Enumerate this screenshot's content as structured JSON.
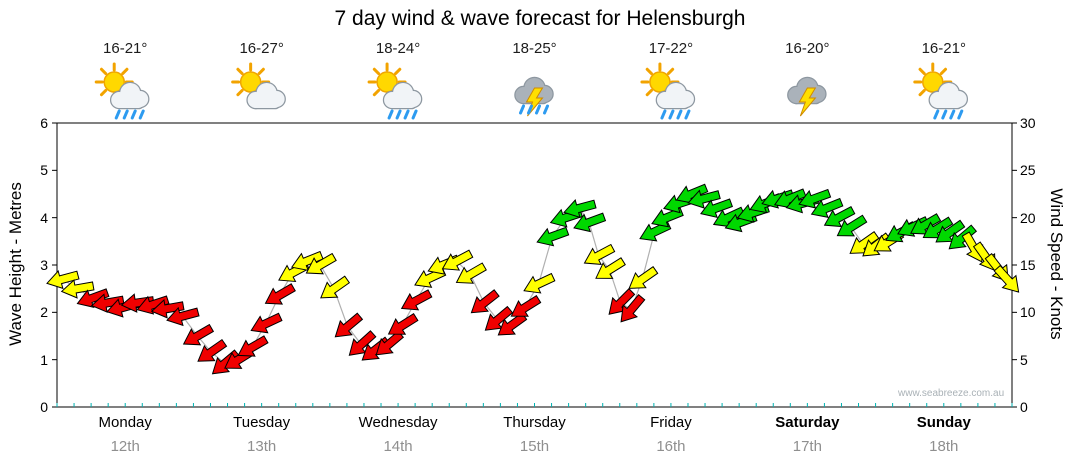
{
  "title": "7 day wind & wave forecast for Helensburgh",
  "watermark": "www.seabreeze.com.au",
  "temperatures": [
    "16-21°",
    "16-27°",
    "18-24°",
    "18-25°",
    "17-22°",
    "16-20°",
    "16-21°"
  ],
  "days": [
    {
      "name": "Monday",
      "date": "12th",
      "bold": false
    },
    {
      "name": "Tuesday",
      "date": "13th",
      "bold": false
    },
    {
      "name": "Wednesday",
      "date": "14th",
      "bold": false
    },
    {
      "name": "Thursday",
      "date": "15th",
      "bold": false
    },
    {
      "name": "Friday",
      "date": "16th",
      "bold": false
    },
    {
      "name": "Saturday",
      "date": "17th",
      "bold": true
    },
    {
      "name": "Sunday",
      "date": "18th",
      "bold": true
    }
  ],
  "weather_icons": [
    {
      "type": "sun-cloud-rain",
      "sun": true,
      "rain": true,
      "lightning": false
    },
    {
      "type": "sun-cloud",
      "sun": true,
      "rain": false,
      "lightning": false
    },
    {
      "type": "sun-cloud-rain",
      "sun": true,
      "rain": true,
      "lightning": false
    },
    {
      "type": "storm-rain",
      "sun": false,
      "rain": true,
      "lightning": true
    },
    {
      "type": "sun-cloud-rain",
      "sun": true,
      "rain": true,
      "lightning": false
    },
    {
      "type": "storm",
      "sun": false,
      "rain": false,
      "lightning": true
    },
    {
      "type": "sun-cloud-rain",
      "sun": true,
      "rain": true,
      "lightning": false
    }
  ],
  "axes": {
    "left_label": "Wave Height - Metres",
    "right_label": "Wind Speed - Knots",
    "left_ticks": [
      0,
      1,
      2,
      3,
      4,
      5,
      6
    ],
    "right_ticks": [
      0,
      5,
      10,
      15,
      20,
      25,
      30
    ],
    "left_max": 6,
    "right_max": 30
  },
  "chart_data": {
    "type": "line",
    "subtype": "wind-arrow-timeseries",
    "title": "7 day wind & wave forecast for Helensburgh",
    "xlabel": "",
    "ylabel_left": "Wave Height - Metres",
    "ylabel_right": "Wind Speed - Knots",
    "ylim_left": [
      0,
      6
    ],
    "ylim_right": [
      0,
      30
    ],
    "x_range_days": 7,
    "categories": [
      "Monday 12th",
      "Tuesday 13th",
      "Wednesday 14th",
      "Thursday 15th",
      "Friday 16th",
      "Saturday 17th",
      "Sunday 18th"
    ],
    "color_scale": {
      "yellow_from": 12,
      "green_from": 17.5,
      "colors": {
        "red": "#f00000",
        "yellow": "#ffff00",
        "green": "#00d800"
      }
    },
    "series": [
      {
        "name": "Wind speed (knots) with direction arrows",
        "points_format": [
          "day_fraction",
          "knots",
          "arrow_angle_deg"
        ],
        "points": [
          [
            0.04,
            13.5,
            165
          ],
          [
            0.15,
            12.5,
            170
          ],
          [
            0.26,
            11.5,
            160
          ],
          [
            0.37,
            11.0,
            170
          ],
          [
            0.48,
            10.5,
            165
          ],
          [
            0.59,
            11.0,
            172
          ],
          [
            0.7,
            10.8,
            162
          ],
          [
            0.81,
            10.4,
            170
          ],
          [
            0.92,
            9.6,
            165
          ],
          [
            1.03,
            7.5,
            150
          ],
          [
            1.13,
            5.8,
            145
          ],
          [
            1.23,
            4.6,
            140
          ],
          [
            1.33,
            5.0,
            148
          ],
          [
            1.43,
            6.3,
            150
          ],
          [
            1.53,
            8.8,
            155
          ],
          [
            1.63,
            11.8,
            150
          ],
          [
            1.73,
            14.2,
            152
          ],
          [
            1.83,
            15.4,
            158
          ],
          [
            1.93,
            15.0,
            150
          ],
          [
            2.03,
            12.5,
            145
          ],
          [
            2.13,
            8.5,
            140
          ],
          [
            2.23,
            6.6,
            138
          ],
          [
            2.33,
            6.0,
            142
          ],
          [
            2.43,
            6.6,
            140
          ],
          [
            2.53,
            8.6,
            148
          ],
          [
            2.63,
            11.2,
            152
          ],
          [
            2.73,
            13.6,
            155
          ],
          [
            2.83,
            15.0,
            158
          ],
          [
            2.93,
            15.4,
            152
          ],
          [
            3.03,
            14.0,
            150
          ],
          [
            3.13,
            11.0,
            142
          ],
          [
            3.23,
            9.2,
            140
          ],
          [
            3.33,
            8.6,
            144
          ],
          [
            3.43,
            10.5,
            148
          ],
          [
            3.53,
            13.0,
            155
          ],
          [
            3.63,
            18.0,
            160
          ],
          [
            3.73,
            20.0,
            162
          ],
          [
            3.83,
            21.0,
            165
          ],
          [
            3.9,
            19.5,
            160
          ],
          [
            3.97,
            16.0,
            152
          ],
          [
            4.05,
            14.5,
            148
          ],
          [
            4.13,
            11.0,
            135
          ],
          [
            4.21,
            10.3,
            130
          ],
          [
            4.29,
            13.5,
            145
          ],
          [
            4.38,
            18.5,
            155
          ],
          [
            4.47,
            20.0,
            158
          ],
          [
            4.56,
            21.5,
            162
          ],
          [
            4.65,
            22.5,
            158
          ],
          [
            4.74,
            22.0,
            165
          ],
          [
            4.83,
            21.0,
            160
          ],
          [
            4.92,
            20.0,
            155
          ],
          [
            5.01,
            19.5,
            160
          ],
          [
            5.1,
            20.5,
            162
          ],
          [
            5.19,
            21.5,
            158
          ],
          [
            5.28,
            22.0,
            162
          ],
          [
            5.37,
            22.0,
            158
          ],
          [
            5.46,
            21.5,
            165
          ],
          [
            5.55,
            22.0,
            160
          ],
          [
            5.64,
            21.0,
            158
          ],
          [
            5.73,
            20.0,
            152
          ],
          [
            5.82,
            19.0,
            148
          ],
          [
            5.91,
            17.2,
            145
          ],
          [
            6.0,
            17.0,
            142
          ],
          [
            6.09,
            17.4,
            148
          ],
          [
            6.18,
            18.4,
            152
          ],
          [
            6.27,
            19.0,
            155
          ],
          [
            6.36,
            19.2,
            150
          ],
          [
            6.45,
            18.8,
            148
          ],
          [
            6.54,
            18.4,
            145
          ],
          [
            6.63,
            17.8,
            140
          ],
          [
            6.72,
            16.8,
            60
          ],
          [
            6.81,
            15.8,
            55
          ],
          [
            6.9,
            14.6,
            52
          ],
          [
            6.97,
            13.4,
            48
          ]
        ]
      }
    ]
  }
}
